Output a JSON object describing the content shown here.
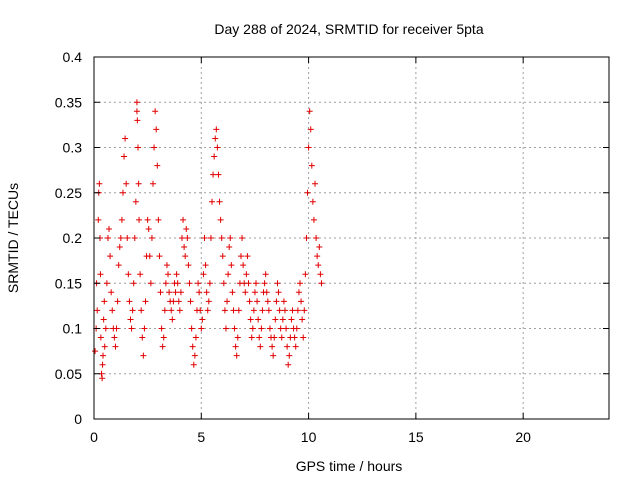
{
  "chart_data": {
    "type": "scatter",
    "title": "Day 288 of 2024, SRMTID for receiver 5pta",
    "xlabel": "GPS time / hours",
    "ylabel": "SRMTID / TECUs",
    "xlim": [
      0,
      24
    ],
    "ylim": [
      0,
      0.4
    ],
    "xticks": [
      0,
      5,
      10,
      15,
      20
    ],
    "xtick_labels": [
      "0",
      "5",
      "10",
      "15",
      "20"
    ],
    "yticks": [
      0,
      0.05,
      0.1,
      0.15,
      0.2,
      0.25,
      0.3,
      0.35,
      0.4
    ],
    "ytick_labels": [
      "0",
      "0.05",
      "0.1",
      "0.15",
      "0.2",
      "0.25",
      "0.3",
      "0.35",
      "0.4"
    ],
    "grid": true,
    "marker": "+",
    "marker_color": "#e00000",
    "series": [
      {
        "name": "SRMTID",
        "x": [
          0.05,
          0.1,
          0.12,
          0.15,
          0.2,
          0.22,
          0.25,
          0.28,
          0.3,
          0.32,
          0.35,
          0.38,
          0.4,
          0.42,
          0.45,
          0.48,
          0.5,
          0.55,
          0.6,
          0.65,
          0.7,
          0.75,
          0.8,
          0.85,
          0.9,
          0.95,
          1.0,
          1.05,
          1.1,
          1.15,
          1.2,
          1.25,
          1.3,
          1.35,
          1.4,
          1.45,
          1.5,
          1.55,
          1.6,
          1.65,
          1.7,
          1.75,
          1.8,
          1.85,
          1.9,
          1.95,
          2.0,
          2.0,
          2.02,
          2.05,
          2.08,
          2.1,
          2.15,
          2.2,
          2.25,
          2.3,
          2.35,
          2.4,
          2.45,
          2.5,
          2.55,
          2.6,
          2.65,
          2.7,
          2.75,
          2.8,
          2.85,
          2.9,
          2.95,
          3.0,
          3.05,
          3.1,
          3.15,
          3.2,
          3.25,
          3.3,
          3.35,
          3.4,
          3.45,
          3.5,
          3.55,
          3.6,
          3.65,
          3.7,
          3.75,
          3.8,
          3.85,
          3.9,
          3.95,
          4.0,
          4.05,
          4.1,
          4.15,
          4.2,
          4.25,
          4.3,
          4.35,
          4.4,
          4.45,
          4.5,
          4.55,
          4.6,
          4.65,
          4.7,
          4.75,
          4.8,
          4.85,
          4.9,
          4.95,
          5.0,
          5.05,
          5.1,
          5.15,
          5.2,
          5.25,
          5.3,
          5.35,
          5.4,
          5.45,
          5.5,
          5.55,
          5.6,
          5.65,
          5.7,
          5.75,
          5.8,
          5.85,
          5.9,
          5.95,
          6.0,
          6.05,
          6.1,
          6.15,
          6.2,
          6.25,
          6.3,
          6.35,
          6.4,
          6.45,
          6.5,
          6.55,
          6.6,
          6.65,
          6.7,
          6.75,
          6.8,
          6.85,
          6.9,
          6.95,
          7.0,
          7.05,
          7.1,
          7.15,
          7.2,
          7.25,
          7.3,
          7.35,
          7.4,
          7.45,
          7.5,
          7.55,
          7.6,
          7.65,
          7.7,
          7.75,
          7.8,
          7.85,
          7.9,
          7.95,
          8.0,
          8.05,
          8.1,
          8.15,
          8.2,
          8.25,
          8.3,
          8.35,
          8.4,
          8.45,
          8.5,
          8.55,
          8.6,
          8.65,
          8.7,
          8.75,
          8.8,
          8.85,
          8.9,
          8.95,
          9.0,
          9.05,
          9.1,
          9.15,
          9.2,
          9.25,
          9.3,
          9.35,
          9.4,
          9.45,
          9.5,
          9.55,
          9.6,
          9.65,
          9.7,
          9.75,
          9.8,
          9.85,
          9.9,
          9.95,
          10.0,
          10.05,
          10.1,
          10.15,
          10.2,
          10.25,
          10.3,
          10.35,
          10.4,
          10.45,
          10.5,
          10.55,
          10.6
        ],
        "y": [
          0.075,
          0.1,
          0.15,
          0.12,
          0.22,
          0.25,
          0.26,
          0.2,
          0.16,
          0.09,
          0.05,
          0.045,
          0.06,
          0.07,
          0.11,
          0.13,
          0.08,
          0.1,
          0.15,
          0.2,
          0.21,
          0.18,
          0.14,
          0.12,
          0.1,
          0.09,
          0.08,
          0.1,
          0.13,
          0.17,
          0.19,
          0.2,
          0.22,
          0.25,
          0.29,
          0.31,
          0.26,
          0.2,
          0.16,
          0.13,
          0.11,
          0.1,
          0.12,
          0.15,
          0.2,
          0.24,
          0.35,
          0.34,
          0.33,
          0.3,
          0.26,
          0.22,
          0.16,
          0.12,
          0.09,
          0.07,
          0.1,
          0.13,
          0.18,
          0.22,
          0.21,
          0.18,
          0.15,
          0.2,
          0.26,
          0.3,
          0.34,
          0.32,
          0.28,
          0.22,
          0.18,
          0.14,
          0.1,
          0.08,
          0.09,
          0.12,
          0.15,
          0.17,
          0.16,
          0.14,
          0.13,
          0.12,
          0.11,
          0.13,
          0.15,
          0.14,
          0.16,
          0.15,
          0.13,
          0.12,
          0.14,
          0.2,
          0.22,
          0.19,
          0.18,
          0.21,
          0.2,
          0.17,
          0.15,
          0.13,
          0.1,
          0.08,
          0.06,
          0.07,
          0.09,
          0.12,
          0.15,
          0.14,
          0.12,
          0.1,
          0.11,
          0.16,
          0.2,
          0.17,
          0.14,
          0.12,
          0.13,
          0.15,
          0.2,
          0.24,
          0.27,
          0.29,
          0.31,
          0.32,
          0.3,
          0.27,
          0.24,
          0.22,
          0.2,
          0.18,
          0.15,
          0.12,
          0.1,
          0.13,
          0.16,
          0.19,
          0.2,
          0.17,
          0.14,
          0.12,
          0.1,
          0.08,
          0.07,
          0.09,
          0.12,
          0.15,
          0.18,
          0.2,
          0.17,
          0.15,
          0.14,
          0.16,
          0.18,
          0.15,
          0.13,
          0.11,
          0.09,
          0.1,
          0.12,
          0.14,
          0.15,
          0.13,
          0.11,
          0.09,
          0.08,
          0.1,
          0.12,
          0.14,
          0.15,
          0.16,
          0.14,
          0.13,
          0.12,
          0.1,
          0.09,
          0.08,
          0.07,
          0.09,
          0.11,
          0.13,
          0.15,
          0.14,
          0.12,
          0.1,
          0.09,
          0.11,
          0.13,
          0.12,
          0.1,
          0.08,
          0.06,
          0.07,
          0.09,
          0.11,
          0.12,
          0.1,
          0.09,
          0.08,
          0.1,
          0.12,
          0.14,
          0.15,
          0.13,
          0.11,
          0.09,
          0.12,
          0.16,
          0.2,
          0.25,
          0.3,
          0.34,
          0.32,
          0.28,
          0.24,
          0.22,
          0.26,
          0.2,
          0.18,
          0.17,
          0.19,
          0.16,
          0.15
        ]
      }
    ]
  }
}
